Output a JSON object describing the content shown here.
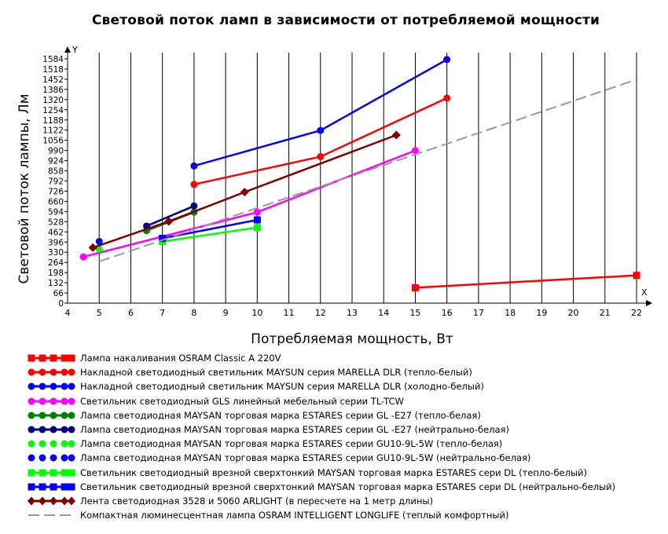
{
  "chart_data": {
    "type": "line",
    "title": "Световой поток ламп в зависимости от потребляемой мощности",
    "xlabel": "Потребляемая мощность, Вт",
    "ylabel": "Световой поток лампы, Лм",
    "x_axis_letter": "X",
    "y_axis_letter": "Y",
    "xlim": [
      4,
      22
    ],
    "ylim": [
      0,
      1584
    ],
    "x_ticks": [
      "4",
      "5",
      "6",
      "7",
      "8",
      "9",
      "10",
      "11",
      "12",
      "13",
      "14",
      "15",
      "16",
      "17",
      "18",
      "19",
      "20",
      "21",
      "22"
    ],
    "y_ticks": [
      "0",
      "66",
      "132",
      "198",
      "264",
      "330",
      "396",
      "462",
      "528",
      "594",
      "660",
      "726",
      "792",
      "858",
      "924",
      "990",
      "1056",
      "1122",
      "1188",
      "1254",
      "1320",
      "1386",
      "1452",
      "1518",
      "1584"
    ],
    "grid": "vertical",
    "legend_position": "bottom",
    "series": [
      {
        "name": "Лампа накаливания OSRAM Classic A 220V",
        "color": "#ff0000",
        "marker": "square",
        "line": "solid",
        "points": [
          [
            15,
            100
          ],
          [
            22,
            180
          ]
        ]
      },
      {
        "name": "Накладной светодиодный светильник MAYSUN серия MARELLA DLR (тепло-белый)",
        "color": "#ff0000",
        "marker": "circle",
        "line": "solid",
        "points": [
          [
            8,
            770
          ],
          [
            12,
            950
          ],
          [
            16,
            1330
          ]
        ]
      },
      {
        "name": "Накладной светодиодный светильник MAYSUN серия MARELLA DLR (холодно-белый)",
        "color": "#0000ff",
        "marker": "circle",
        "line": "solid",
        "points": [
          [
            8,
            890
          ],
          [
            12,
            1120
          ],
          [
            16,
            1580
          ]
        ]
      },
      {
        "name": "Светильник светодиодный GLS линейный мебельный серии TL-TCW",
        "color": "#ff00ff",
        "marker": "circle",
        "line": "solid",
        "points": [
          [
            4.5,
            300
          ],
          [
            10,
            590
          ],
          [
            15,
            990
          ]
        ]
      },
      {
        "name": "Лампа светодиодная  MAYSAN торговая марка ESTARES серии GL -E27 (тепло-белая)",
        "color": "#008000",
        "marker": "circle",
        "line": "solid",
        "points": [
          [
            6.5,
            470
          ],
          [
            8,
            590
          ]
        ]
      },
      {
        "name": "Лампа светодиодная  MAYSAN торговая марка ESTARES серии GL -E27 (нейтрально-белая)",
        "color": "#000080",
        "marker": "circle",
        "line": "solid",
        "points": [
          [
            6.5,
            500
          ],
          [
            8,
            630
          ]
        ]
      },
      {
        "name": "Лампа светодиодная  MAYSAN торговая марка ESTARES серии GU10-9L-5W (тепло-белая)",
        "color": "#00ff00",
        "marker": "circle",
        "line": "none",
        "points": [
          [
            5,
            350
          ]
        ]
      },
      {
        "name": "Лампа светодиодная  MAYSAN торговая марка ESTARES серии GU10-9L-5W (нейтрально-белая)",
        "color": "#0000ff",
        "marker": "circle",
        "line": "none",
        "points": [
          [
            5,
            400
          ]
        ]
      },
      {
        "name": "Светильник светодиодный врезной сверхтонкий  MAYSAN торговая марка ESTARES сери DL (тепло-белый)",
        "color": "#00ff00",
        "marker": "square",
        "line": "solid",
        "points": [
          [
            7,
            400
          ],
          [
            10,
            490
          ]
        ]
      },
      {
        "name": "Светильник светодиодный врезной сверхтонкий  MAYSAN торговая марка ESTARES сери DL (нейтрально-белый)",
        "color": "#0000ff",
        "marker": "square",
        "line": "solid",
        "points": [
          [
            7,
            420
          ],
          [
            10,
            540
          ]
        ]
      },
      {
        "name": "Лента светодиодная 3528 и 5060 ARLIGHT (в пересчете на 1 метр длины)",
        "color": "#800000",
        "marker": "diamond",
        "line": "solid",
        "points": [
          [
            4.8,
            360
          ],
          [
            7.2,
            530
          ],
          [
            9.6,
            720
          ],
          [
            14.4,
            1090
          ]
        ]
      },
      {
        "name": "Компактная люминесцентная лампа OSRAM INTELLIGENT LONGLIFE (теплый комфортный)",
        "color": "#999999",
        "marker": "none",
        "line": "dashed",
        "points": [
          [
            5,
            270
          ],
          [
            22,
            1450
          ]
        ]
      }
    ]
  }
}
